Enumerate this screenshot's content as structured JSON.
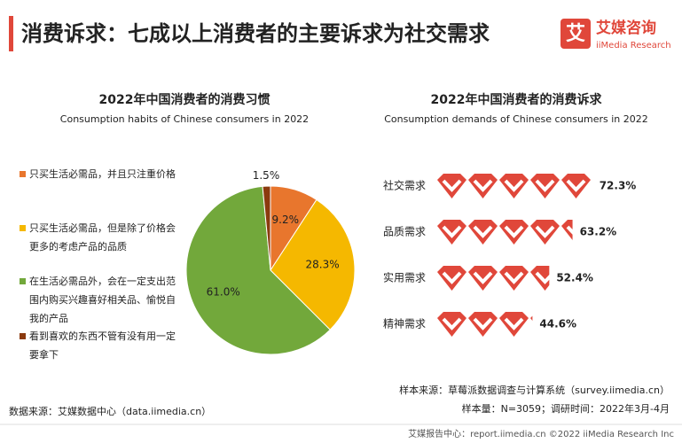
{
  "header": {
    "title": "消费诉求：七成以上消费者的主要诉求为社交需求",
    "logo": {
      "mark": "艾",
      "name": "艾媒咨询",
      "name_en": "iiMedia Research"
    }
  },
  "chart_data": [
    {
      "type": "pie",
      "title": "2022年中国消费者的消费习惯",
      "subtitle": "Consumption habits of Chinese consumers in 2022",
      "categories": [
        "只买生活必需品，并且只注重价格",
        "只买生活必需品，但是除了价格会更多的考虑产品的品质",
        "在生活必需品外，会在一定支出范围内购买兴趣喜好相关品、愉悦自我的产品",
        "看到喜欢的东西不管有没有用一定要拿下"
      ],
      "values": [
        9.2,
        28.3,
        61.0,
        1.5
      ],
      "value_labels": [
        "9.2%",
        "28.3%",
        "61.0%",
        "1.5%"
      ],
      "colors": [
        "#e8762d",
        "#f5b800",
        "#72a83b",
        "#8b3a0e"
      ]
    },
    {
      "type": "pictogram",
      "title": "2022年中国消费者的消费诉求",
      "subtitle": "Consumption demands of Chinese consumers in 2022",
      "categories": [
        "社交需求",
        "品质需求",
        "实用需求",
        "精神需求"
      ],
      "values": [
        72.3,
        63.2,
        52.4,
        44.6
      ],
      "value_labels": [
        "72.3%",
        "63.2%",
        "52.4%",
        "44.6%"
      ],
      "color": "#e0473a"
    }
  ],
  "footer": {
    "data_source": "数据来源：艾媒数据中心（data.iimedia.cn）",
    "sample_source": "样本来源：草莓派数据调查与计算系统（survey.iimedia.cn）",
    "sample_info": "样本量：N=3059；调研时间：2022年3月-4月",
    "copyright": "艾媒报告中心：report.iimedia.cn  ©2022  iiMedia Research Inc"
  }
}
